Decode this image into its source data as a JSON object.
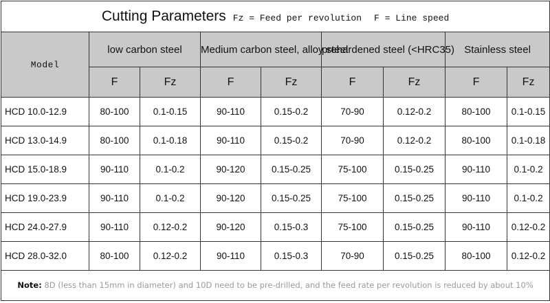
{
  "title": {
    "main": "Cutting Parameters",
    "fz_note": "Fz = Feed per revolution",
    "f_note": "F = Line speed"
  },
  "headers": {
    "model": "Model",
    "groups": [
      "low carbon steel",
      "Medium carbon steel, alloy steel",
      "prehardened steel (<HRC35)",
      "Stainless steel"
    ],
    "sub": [
      "F",
      "Fz"
    ]
  },
  "rows": [
    {
      "model": "HCD 10.0-12.9",
      "values": [
        "80-100",
        "0.1-0.15",
        "90-110",
        "0.15-0.2",
        "70-90",
        "0.12-0.2",
        "80-100",
        "0.1-0.15"
      ]
    },
    {
      "model": "HCD 13.0-14.9",
      "values": [
        "80-100",
        "0.1-0.18",
        "90-110",
        "0.15-0.2",
        "70-90",
        "0.12-0.2",
        "80-100",
        "0.1-0.18"
      ]
    },
    {
      "model": "HCD 15.0-18.9",
      "values": [
        "90-110",
        "0.1-0.2",
        "90-120",
        "0.15-0.25",
        "75-100",
        "0.15-0.25",
        "90-110",
        "0.1-0.2"
      ]
    },
    {
      "model": "HCD 19.0-23.9",
      "values": [
        "90-110",
        "0.1-0.2",
        "90-120",
        "0.15-0.25",
        "75-100",
        "0.15-0.25",
        "90-110",
        "0.1-0.2"
      ]
    },
    {
      "model": "HCD 24.0-27.9",
      "values": [
        "90-110",
        "0.12-0.2",
        "90-120",
        "0.15-0.3",
        "75-100",
        "0.15-0.25",
        "90-110",
        "0.12-0.2"
      ]
    },
    {
      "model": "HCD 28.0-32.0",
      "values": [
        "80-100",
        "0.12-0.2",
        "90-110",
        "0.15-0.3",
        "70-90",
        "0.15-0.25",
        "80-100",
        "0.12-0.2"
      ]
    }
  ],
  "note": {
    "label": "Note:",
    "text": "8D (less than 15mm in diameter) and 10D need to be pre-drilled, and the feed rate per revolution is reduced by about 10%"
  }
}
